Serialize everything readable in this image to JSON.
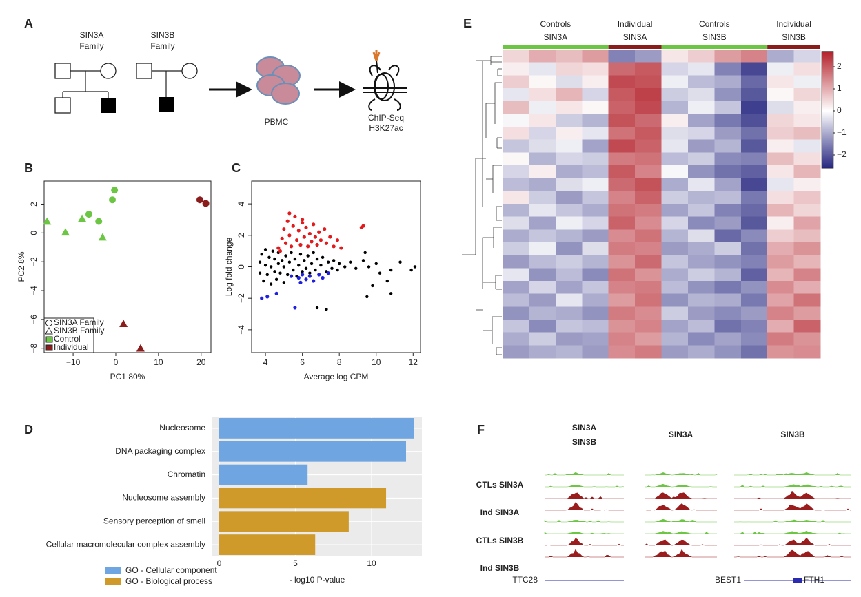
{
  "panel_labels": [
    "A",
    "B",
    "C",
    "D",
    "E",
    "F"
  ],
  "panel_a": {
    "family_a": [
      "SIN3A",
      "Family"
    ],
    "family_b": [
      "SIN3B",
      "Family"
    ],
    "cells": "PBMC",
    "assay": [
      "ChIP-Seq",
      "H3K27ac"
    ]
  },
  "chart_data": [
    {
      "type": "scatter",
      "xlabel": "PC1 80%",
      "ylabel": "PC2 8%",
      "xlim": [
        -16.8,
        22.3
      ],
      "ylim": [
        -8.3,
        3.6
      ],
      "xticks": [
        {
          "value": -10,
          "label": "−10"
        },
        0,
        10,
        20
      ],
      "yticks": [
        {
          "value": -8,
          "label": "−8"
        },
        {
          "value": -6,
          "label": "−6"
        },
        {
          "value": -4,
          "label": "−4"
        },
        {
          "value": -2,
          "label": "−2"
        },
        0,
        2
      ],
      "series": [
        {
          "marker": "circle",
          "color": "#6cc644",
          "x": [
            -0.3,
            -0.8,
            -6.3,
            -4.0
          ],
          "y": [
            2.97,
            2.3,
            1.3,
            0.8
          ]
        },
        {
          "marker": "triangle",
          "color": "#6cc644",
          "x": [
            -16.1,
            -11.8,
            -7.9,
            -3.1
          ],
          "y": [
            0.8,
            0.05,
            1.0,
            -0.3
          ]
        },
        {
          "marker": "circle",
          "color": "#8b1c1c",
          "x": [
            19.7,
            21.1
          ],
          "y": [
            2.3,
            2.05
          ]
        },
        {
          "marker": "triangle",
          "color": "#8b1c1c",
          "x": [
            1.8,
            5.8
          ],
          "y": [
            -6.3,
            -8.0
          ]
        }
      ],
      "legend": [
        {
          "label": "SIN3A Family",
          "marker": "circle"
        },
        {
          "label": "SIN3B Family",
          "marker": "triangle"
        },
        {
          "label": "Control",
          "color": "#6cc644"
        },
        {
          "label": "Individual",
          "color": "#8b1c1c"
        }
      ]
    },
    {
      "type": "scatter",
      "xlabel": "Average log CPM",
      "ylabel": "Log fold change",
      "xlim": [
        3.25,
        12.4
      ],
      "ylim": [
        -5.45,
        5.45
      ],
      "xticks": [
        4,
        6,
        8,
        10,
        12
      ],
      "yticks": [
        {
          "value": -4,
          "label": "−4"
        },
        {
          "value": -2,
          "label": "−2"
        },
        0,
        2,
        4
      ],
      "series": [
        {
          "marker": "dot",
          "color": "#000000",
          "x": [
            3.7,
            3.7,
            3.8,
            3.9,
            4.0,
            4.0,
            4.1,
            4.2,
            4.3,
            4.3,
            4.4,
            4.5,
            4.5,
            4.6,
            4.7,
            4.7,
            4.8,
            4.9,
            5.0,
            5.0,
            5.1,
            5.2,
            5.3,
            5.4,
            5.5,
            5.6,
            5.7,
            5.8,
            5.9,
            6.0,
            6.1,
            6.2,
            6.3,
            6.4,
            6.5,
            6.6,
            6.7,
            6.8,
            6.9,
            7.0,
            7.1,
            7.3,
            7.4,
            7.6,
            7.7,
            7.9,
            8.0,
            8.3,
            8.6,
            8.9,
            9.3,
            9.6,
            10.0,
            10.2,
            10.8,
            11.3,
            11.9,
            12.1,
            9.8,
            10.6,
            9.5,
            7.3,
            6.8,
            10.8,
            9.4
          ],
          "y": [
            0.3,
            -0.4,
            0.8,
            -0.9,
            0.1,
            1.1,
            -0.5,
            0.6,
            -1.1,
            0.0,
            1.0,
            -0.3,
            0.5,
            -0.8,
            0.2,
            0.9,
            -0.4,
            0.4,
            -1.0,
            0.0,
            0.7,
            -0.5,
            0.3,
            0.9,
            -0.2,
            0.5,
            -0.6,
            0.1,
            0.8,
            -0.3,
            0.4,
            -0.1,
            0.7,
            -0.4,
            0.2,
            0.9,
            -0.2,
            0.5,
            -0.5,
            0.1,
            0.6,
            -0.3,
            0.3,
            -0.1,
            0.4,
            -0.2,
            0.2,
            0.0,
            0.3,
            -0.1,
            0.4,
            0.0,
            0.2,
            -0.4,
            -0.2,
            0.3,
            -0.2,
            0.0,
            -1.2,
            -0.9,
            -1.9,
            -2.7,
            -2.6,
            -1.7,
            0.9
          ]
        },
        {
          "marker": "dot",
          "color": "#e31a1c",
          "x": [
            4.7,
            4.9,
            5.0,
            5.1,
            5.2,
            5.3,
            5.4,
            5.5,
            5.6,
            5.7,
            5.8,
            5.9,
            6.0,
            6.1,
            6.2,
            6.3,
            6.4,
            6.5,
            6.6,
            6.7,
            6.8,
            6.9,
            7.0,
            7.2,
            7.3,
            7.5,
            7.7,
            7.9,
            8.1,
            9.2,
            9.3,
            5.3,
            6.0,
            4.8
          ],
          "y": [
            1.2,
            1.8,
            2.4,
            1.5,
            2.9,
            2.0,
            1.3,
            2.6,
            3.2,
            1.7,
            2.3,
            1.4,
            2.8,
            1.9,
            2.5,
            1.3,
            2.1,
            1.6,
            2.7,
            1.9,
            1.4,
            2.2,
            1.7,
            2.4,
            1.5,
            1.9,
            1.3,
            1.7,
            1.2,
            2.5,
            2.6,
            3.4,
            3.0,
            1.0
          ]
        },
        {
          "marker": "dot",
          "color": "#2020e0",
          "x": [
            3.8,
            4.1,
            4.6,
            5.4,
            5.6,
            5.8,
            6.0,
            6.2,
            6.4,
            6.6,
            6.9,
            7.1,
            7.4,
            5.9
          ],
          "y": [
            -2.0,
            -1.9,
            -1.7,
            -0.6,
            -2.6,
            -0.7,
            -0.5,
            -0.8,
            -0.6,
            -0.9,
            -0.5,
            -0.7,
            -0.4,
            -1.0
          ]
        }
      ]
    },
    {
      "type": "hbar",
      "xlabel": "- log10 P-value",
      "xlim": [
        -0.45,
        13.3
      ],
      "xticks": [
        0,
        5,
        10
      ],
      "categories": [
        "Nucleosome",
        "DNA packaging complex",
        "Chromatin",
        "Nucleosome assembly",
        "Sensory perception of smell",
        "Cellular macromolecular complex assembly"
      ],
      "series": [
        {
          "name": "GO - Cellular component",
          "color": "#6fa5e0",
          "values": [
            12.8,
            12.26,
            5.8,
            null,
            null,
            null
          ]
        },
        {
          "name": "GO - Biological process",
          "color": "#cf9a2a",
          "values": [
            null,
            null,
            null,
            10.95,
            8.5,
            6.3
          ]
        }
      ]
    },
    {
      "type": "heatmap",
      "zlim": [
        -2.6,
        2.7
      ],
      "colorscale": [
        "#262680",
        "#ffffff",
        "#b3202a"
      ],
      "colorbar_ticks": [
        2,
        1,
        0,
        {
          "value": -1,
          "label": "−1"
        },
        {
          "value": -2,
          "label": "−2"
        }
      ],
      "column_groups": [
        {
          "label": [
            "Controls",
            "SIN3A"
          ],
          "color": "#6cc644",
          "columns": 4
        },
        {
          "label": [
            "Individual",
            "SIN3A"
          ],
          "color": "#8b1c1c",
          "columns": 2
        },
        {
          "label": [
            "Controls",
            "SIN3B"
          ],
          "color": "#6cc644",
          "columns": 4
        },
        {
          "label": [
            "Individual",
            "SIN3B"
          ],
          "color": "#8b1c1c",
          "columns": 2
        }
      ],
      "values": [
        [
          0.5,
          1.0,
          0.8,
          1.2,
          -1.5,
          -1.2,
          0.3,
          0.6,
          1.2,
          1.5,
          -1.0,
          -0.5
        ],
        [
          0.2,
          -0.3,
          0.5,
          0.4,
          1.8,
          2.0,
          -0.5,
          -0.3,
          -1.5,
          -2.2,
          -0.2,
          0.4
        ],
        [
          0.6,
          0.1,
          -0.4,
          0.2,
          2.2,
          2.1,
          -0.2,
          -0.8,
          -1.0,
          -1.8,
          0.3,
          -0.2
        ],
        [
          -0.3,
          0.4,
          0.9,
          -0.5,
          2.0,
          2.3,
          -0.6,
          -0.4,
          -1.3,
          -2.0,
          0.1,
          0.5
        ],
        [
          0.8,
          -0.2,
          0.3,
          0.1,
          1.9,
          2.2,
          -0.9,
          -0.2,
          -0.7,
          -2.3,
          -0.4,
          0.2
        ],
        [
          -0.1,
          0.3,
          -0.6,
          -0.9,
          2.1,
          1.8,
          0.2,
          -1.1,
          -1.6,
          -2.1,
          0.5,
          0.3
        ],
        [
          0.4,
          -0.5,
          0.2,
          -0.3,
          1.7,
          2.0,
          -0.4,
          -0.5,
          -1.2,
          -1.7,
          0.6,
          0.8
        ],
        [
          -0.7,
          -0.4,
          -0.2,
          -1.1,
          2.2,
          1.9,
          -0.3,
          -1.2,
          -0.9,
          -2.0,
          0.2,
          -0.3
        ],
        [
          0.1,
          -0.9,
          -0.5,
          -0.6,
          1.6,
          1.7,
          -0.8,
          -0.6,
          -1.4,
          -1.5,
          0.8,
          0.4
        ],
        [
          -0.5,
          0.2,
          -1.0,
          -0.8,
          2.0,
          1.5,
          -0.1,
          -1.3,
          -1.7,
          -1.9,
          0.3,
          0.9
        ],
        [
          -0.8,
          -1.0,
          -0.4,
          -0.2,
          1.8,
          2.1,
          -1.0,
          -0.3,
          -1.1,
          -2.2,
          -0.3,
          0.2
        ],
        [
          0.3,
          -0.6,
          -1.2,
          -0.7,
          1.5,
          1.9,
          -0.6,
          -0.9,
          -0.8,
          -1.6,
          0.4,
          0.7
        ],
        [
          -0.9,
          -0.3,
          -0.7,
          -1.0,
          1.7,
          1.6,
          -1.1,
          -0.7,
          -1.5,
          -1.8,
          0.9,
          0.5
        ],
        [
          -0.4,
          -1.1,
          -0.2,
          -0.5,
          1.9,
          1.4,
          -0.5,
          -1.4,
          -1.2,
          -2.0,
          0.2,
          1.1
        ],
        [
          -1.0,
          -0.7,
          -0.9,
          -1.2,
          1.4,
          1.7,
          -0.9,
          -0.4,
          -1.8,
          -1.4,
          0.6,
          0.8
        ],
        [
          -0.6,
          -0.2,
          -1.3,
          -0.4,
          1.6,
          1.5,
          -1.2,
          -1.0,
          -0.6,
          -1.7,
          1.0,
          1.3
        ],
        [
          -1.2,
          -0.8,
          -0.6,
          -0.9,
          1.3,
          1.8,
          -0.7,
          -1.1,
          -1.3,
          -1.5,
          1.2,
          0.9
        ],
        [
          -0.3,
          -1.3,
          -0.8,
          -1.4,
          1.7,
          1.3,
          -1.0,
          -0.6,
          -0.9,
          -1.9,
          0.9,
          1.5
        ],
        [
          -1.1,
          -0.5,
          -1.1,
          -0.7,
          1.5,
          1.6,
          -0.8,
          -1.3,
          -1.6,
          -1.3,
          1.4,
          1.0
        ],
        [
          -0.8,
          -1.2,
          -0.3,
          -1.0,
          1.2,
          1.7,
          -1.3,
          -0.9,
          -1.0,
          -1.6,
          1.1,
          1.7
        ],
        [
          -1.3,
          -0.9,
          -1.0,
          -1.3,
          1.6,
          1.4,
          -0.6,
          -1.2,
          -1.4,
          -1.2,
          1.5,
          1.2
        ],
        [
          -0.7,
          -1.4,
          -0.7,
          -0.8,
          1.3,
          1.5,
          -1.1,
          -0.8,
          -1.7,
          -1.5,
          1.0,
          1.9
        ],
        [
          -1.0,
          -0.6,
          -1.2,
          -1.1,
          1.5,
          1.2,
          -0.9,
          -1.4,
          -1.1,
          -1.4,
          1.6,
          1.3
        ],
        [
          -1.2,
          -1.0,
          -0.9,
          -1.2,
          1.4,
          1.6,
          -1.2,
          -1.0,
          -1.3,
          -1.7,
          1.3,
          1.4
        ]
      ]
    }
  ],
  "panel_f": {
    "columns": [
      [
        "SIN3A",
        "SIN3B"
      ],
      [
        "SIN3A"
      ],
      [
        "SIN3B"
      ]
    ],
    "rows": [
      {
        "label": "CTLs SIN3A",
        "color": "#6cc644"
      },
      {
        "label": "Ind SIN3A",
        "color": "#9b1c1c"
      },
      {
        "label": "CTLs SIN3B",
        "color": "#6cc644"
      },
      {
        "label": "Ind SIN3B",
        "color": "#9b1c1c"
      }
    ],
    "genes": [
      "TTC28",
      "BEST1",
      "FTH1"
    ]
  }
}
